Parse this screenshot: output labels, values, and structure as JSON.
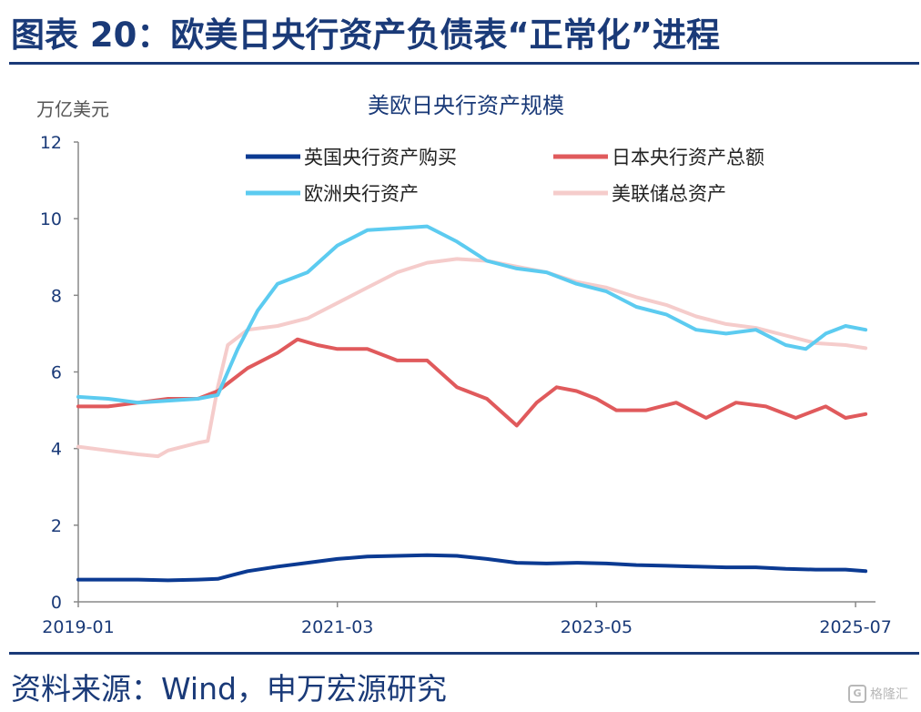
{
  "header": {
    "title": "图表 20：欧美日央行资产负债表“正常化”进程"
  },
  "footer": {
    "source": "资料来源：Wind，申万宏源研究"
  },
  "watermark": {
    "text": "格隆汇"
  },
  "colors": {
    "brand": "#1a3a78"
  },
  "chart_data": {
    "type": "line",
    "title": "美欧日央行资产规模",
    "ylabel": "万亿美元",
    "xlabel": "",
    "ylim": [
      0,
      12
    ],
    "yticks": [
      0,
      2,
      4,
      6,
      8,
      10,
      12
    ],
    "xlim": [
      "2019-01",
      "2025-09"
    ],
    "xticks": [
      "2019-01",
      "2021-03",
      "2023-05",
      "2025-07"
    ],
    "legend_position": "top",
    "grid": false,
    "series": [
      {
        "name": "英国央行资产购买",
        "color": "#0b3a92",
        "x": [
          "2019-01",
          "2019-07",
          "2019-10",
          "2020-01",
          "2020-03",
          "2020-06",
          "2020-09",
          "2020-12",
          "2021-03",
          "2021-06",
          "2021-09",
          "2021-12",
          "2022-03",
          "2022-06",
          "2022-09",
          "2022-12",
          "2023-03",
          "2023-06",
          "2023-09",
          "2023-12",
          "2024-03",
          "2024-06",
          "2024-09",
          "2024-12",
          "2025-03",
          "2025-06",
          "2025-08"
        ],
        "values": [
          0.58,
          0.58,
          0.56,
          0.58,
          0.6,
          0.8,
          0.92,
          1.02,
          1.12,
          1.18,
          1.2,
          1.22,
          1.2,
          1.12,
          1.02,
          1.0,
          1.02,
          1.0,
          0.96,
          0.94,
          0.92,
          0.9,
          0.9,
          0.86,
          0.84,
          0.84,
          0.8
        ]
      },
      {
        "name": "日本央行资产总额",
        "color": "#e05a5c",
        "x": [
          "2019-01",
          "2019-04",
          "2019-07",
          "2019-10",
          "2020-01",
          "2020-03",
          "2020-06",
          "2020-09",
          "2020-11",
          "2021-01",
          "2021-03",
          "2021-06",
          "2021-09",
          "2021-12",
          "2022-03",
          "2022-06",
          "2022-09",
          "2022-11",
          "2023-01",
          "2023-03",
          "2023-05",
          "2023-07",
          "2023-10",
          "2024-01",
          "2024-04",
          "2024-07",
          "2024-10",
          "2025-01",
          "2025-04",
          "2025-06",
          "2025-08"
        ],
        "values": [
          5.1,
          5.1,
          5.2,
          5.3,
          5.3,
          5.5,
          6.1,
          6.5,
          6.85,
          6.7,
          6.6,
          6.6,
          6.3,
          6.3,
          5.6,
          5.3,
          4.6,
          5.2,
          5.6,
          5.5,
          5.3,
          5.0,
          5.0,
          5.2,
          4.8,
          5.2,
          5.1,
          4.8,
          5.1,
          4.8,
          4.9
        ]
      },
      {
        "name": "欧洲央行资产",
        "color": "#5ccbf0",
        "x": [
          "2019-01",
          "2019-04",
          "2019-07",
          "2019-10",
          "2020-01",
          "2020-03",
          "2020-05",
          "2020-07",
          "2020-09",
          "2020-12",
          "2021-03",
          "2021-06",
          "2021-09",
          "2021-12",
          "2022-03",
          "2022-06",
          "2022-09",
          "2022-12",
          "2023-03",
          "2023-06",
          "2023-09",
          "2023-12",
          "2024-03",
          "2024-06",
          "2024-09",
          "2024-12",
          "2025-02",
          "2025-04",
          "2025-06",
          "2025-08"
        ],
        "values": [
          5.35,
          5.3,
          5.2,
          5.25,
          5.3,
          5.4,
          6.6,
          7.6,
          8.3,
          8.6,
          9.3,
          9.7,
          9.75,
          9.8,
          9.4,
          8.9,
          8.7,
          8.6,
          8.3,
          8.1,
          7.7,
          7.5,
          7.1,
          7.0,
          7.1,
          6.7,
          6.6,
          7.0,
          7.2,
          7.1
        ]
      },
      {
        "name": "美联储总资产",
        "color": "#f5cccb",
        "x": [
          "2019-01",
          "2019-04",
          "2019-07",
          "2019-09",
          "2019-10",
          "2020-01",
          "2020-02",
          "2020-03",
          "2020-04",
          "2020-06",
          "2020-09",
          "2020-12",
          "2021-03",
          "2021-06",
          "2021-09",
          "2021-12",
          "2022-03",
          "2022-06",
          "2022-09",
          "2022-12",
          "2023-03",
          "2023-06",
          "2023-09",
          "2023-12",
          "2024-03",
          "2024-06",
          "2024-09",
          "2024-12",
          "2025-03",
          "2025-06",
          "2025-08"
        ],
        "values": [
          4.05,
          3.95,
          3.85,
          3.8,
          3.95,
          4.15,
          4.2,
          5.6,
          6.7,
          7.1,
          7.2,
          7.4,
          7.8,
          8.2,
          8.6,
          8.85,
          8.95,
          8.9,
          8.75,
          8.6,
          8.35,
          8.2,
          7.95,
          7.75,
          7.45,
          7.25,
          7.15,
          6.95,
          6.75,
          6.7,
          6.62
        ]
      }
    ]
  }
}
